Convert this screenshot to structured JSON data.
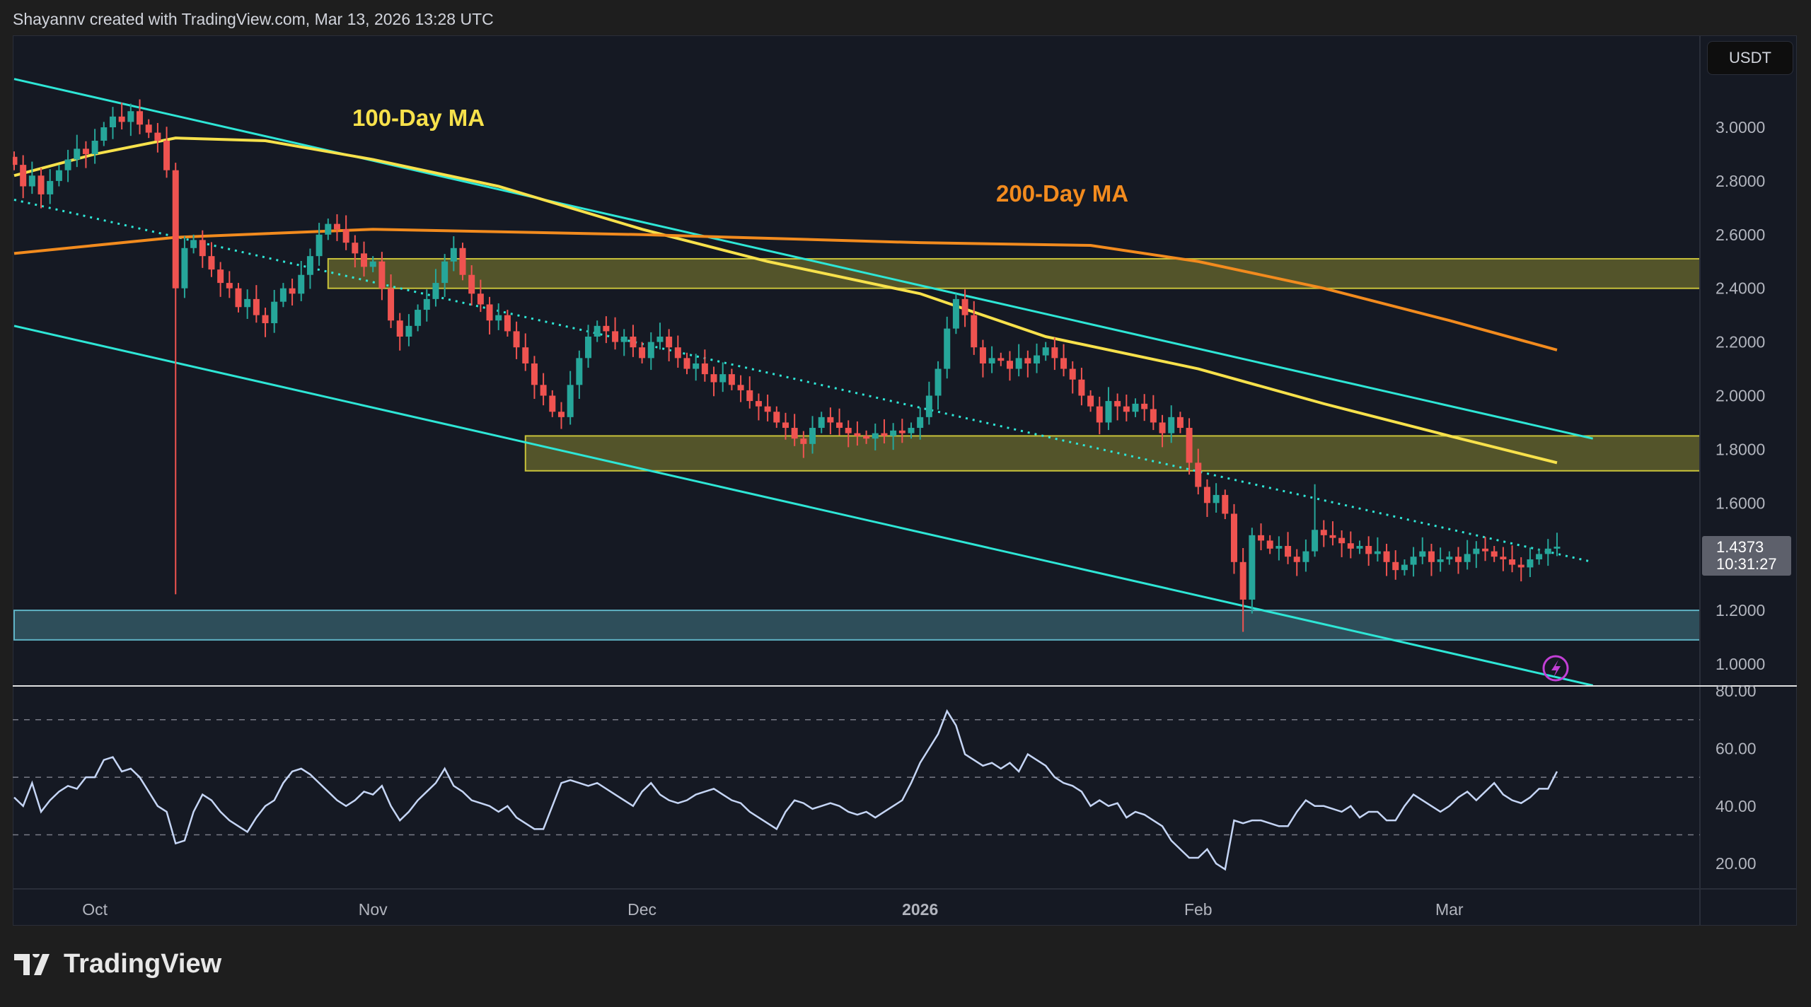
{
  "header": {
    "caption": "Shayannv created with TradingView.com, Mar 13, 2026 13:28 UTC"
  },
  "footer": {
    "logo_text": "TradingView"
  },
  "chart_data": {
    "type": "candlestick",
    "currency": "USDT",
    "start_date": "2025-09-22",
    "closes": [
      2.86,
      2.78,
      2.82,
      2.75,
      2.8,
      2.84,
      2.88,
      2.92,
      2.9,
      2.95,
      3.0,
      3.04,
      3.02,
      3.06,
      3.01,
      2.98,
      2.95,
      2.84,
      2.4,
      2.55,
      2.58,
      2.52,
      2.47,
      2.42,
      2.4,
      2.33,
      2.36,
      2.3,
      2.27,
      2.35,
      2.4,
      2.38,
      2.45,
      2.52,
      2.6,
      2.64,
      2.62,
      2.57,
      2.53,
      2.48,
      2.5,
      2.4,
      2.28,
      2.22,
      2.26,
      2.32,
      2.36,
      2.42,
      2.5,
      2.55,
      2.45,
      2.38,
      2.34,
      2.28,
      2.3,
      2.24,
      2.18,
      2.12,
      2.04,
      2.0,
      1.94,
      1.92,
      2.04,
      2.14,
      2.22,
      2.26,
      2.24,
      2.2,
      2.22,
      2.18,
      2.14,
      2.2,
      2.22,
      2.18,
      2.14,
      2.1,
      2.12,
      2.08,
      2.05,
      2.08,
      2.04,
      2.02,
      1.98,
      1.96,
      1.94,
      1.9,
      1.88,
      1.84,
      1.82,
      1.88,
      1.92,
      1.9,
      1.88,
      1.86,
      1.85,
      1.84,
      1.86,
      1.85,
      1.87,
      1.86,
      1.88,
      1.92,
      2.0,
      2.1,
      2.25,
      2.36,
      2.3,
      2.18,
      2.12,
      2.14,
      2.13,
      2.1,
      2.14,
      2.12,
      2.15,
      2.18,
      2.14,
      2.1,
      2.06,
      2.0,
      1.96,
      1.9,
      1.98,
      1.96,
      1.94,
      1.97,
      1.95,
      1.9,
      1.86,
      1.92,
      1.88,
      1.75,
      1.66,
      1.6,
      1.63,
      1.56,
      1.38,
      1.24,
      1.48,
      1.46,
      1.43,
      1.44,
      1.4,
      1.38,
      1.42,
      1.5,
      1.48,
      1.47,
      1.45,
      1.43,
      1.44,
      1.41,
      1.42,
      1.38,
      1.35,
      1.37,
      1.4,
      1.42,
      1.38,
      1.39,
      1.4,
      1.38,
      1.41,
      1.43,
      1.42,
      1.4,
      1.39,
      1.37,
      1.36,
      1.39,
      1.41,
      1.43,
      1.4373
    ],
    "notable_wicks": [
      {
        "date": "2025-10-10",
        "low": 1.26
      },
      {
        "date": "2026-02-06",
        "low": 1.12
      },
      {
        "date": "2026-02-14",
        "high": 1.67
      }
    ],
    "moving_averages": [
      {
        "name": "100-Day MA",
        "color": "#f7e14b",
        "points": [
          [
            "2025-09-22",
            2.82
          ],
          [
            "2025-10-01",
            2.9
          ],
          [
            "2025-10-10",
            2.96
          ],
          [
            "2025-10-20",
            2.95
          ],
          [
            "2025-11-01",
            2.88
          ],
          [
            "2025-11-15",
            2.78
          ],
          [
            "2025-12-01",
            2.62
          ],
          [
            "2025-12-15",
            2.5
          ],
          [
            "2026-01-01",
            2.38
          ],
          [
            "2026-01-15",
            2.22
          ],
          [
            "2026-02-01",
            2.1
          ],
          [
            "2026-02-15",
            1.97
          ],
          [
            "2026-03-01",
            1.85
          ],
          [
            "2026-03-13",
            1.75
          ]
        ]
      },
      {
        "name": "200-Day MA",
        "color": "#f28b1e",
        "points": [
          [
            "2025-09-22",
            2.53
          ],
          [
            "2025-10-10",
            2.59
          ],
          [
            "2025-11-01",
            2.62
          ],
          [
            "2025-12-01",
            2.6
          ],
          [
            "2026-01-01",
            2.57
          ],
          [
            "2026-01-20",
            2.56
          ],
          [
            "2026-02-01",
            2.5
          ],
          [
            "2026-02-15",
            2.4
          ],
          [
            "2026-03-01",
            2.28
          ],
          [
            "2026-03-13",
            2.17
          ]
        ]
      }
    ],
    "channel": {
      "color": "#2ee6d6",
      "upper": [
        [
          "2025-09-22",
          3.18
        ],
        [
          "2026-03-17",
          1.84
        ]
      ],
      "lower": [
        [
          "2025-09-22",
          2.26
        ],
        [
          "2026-03-17",
          0.92
        ]
      ],
      "middle_dotted": [
        [
          "2025-09-22",
          2.73
        ],
        [
          "2026-03-17",
          1.38
        ]
      ]
    },
    "zones": [
      {
        "from": "2025-10-27",
        "low": 2.4,
        "high": 2.51,
        "color": "#c8c23a"
      },
      {
        "from": "2025-11-18",
        "low": 1.72,
        "high": 1.85,
        "color": "#c8c23a"
      },
      {
        "from": "2025-09-22",
        "low": 1.09,
        "high": 1.2,
        "color": "#5fb3c4"
      }
    ],
    "annotations": [
      {
        "text": "100-Day MA",
        "color": "#f7e14b"
      },
      {
        "text": "200-Day MA",
        "color": "#f28b1e"
      }
    ],
    "y_ticks": [
      "3.0000",
      "2.8000",
      "2.6000",
      "2.4000",
      "2.2000",
      "2.0000",
      "1.8000",
      "1.6000",
      "1.2000",
      "1.0000"
    ],
    "ylim": [
      0.9,
      3.18
    ],
    "last_price": "1.4373",
    "countdown": "10:31:27",
    "x_ticks": [
      {
        "label": "Oct",
        "date": "2025-10-01"
      },
      {
        "label": "Nov",
        "date": "2025-11-01"
      },
      {
        "label": "Dec",
        "date": "2025-12-01"
      },
      {
        "label": "2026",
        "date": "2026-01-01",
        "bold": true
      },
      {
        "label": "Feb",
        "date": "2026-02-01"
      },
      {
        "label": "Mar",
        "date": "2026-03-01"
      }
    ],
    "rsi": {
      "y_ticks": [
        "80.00",
        "60.00",
        "40.00",
        "20.00"
      ],
      "levels": [
        70,
        50,
        30
      ],
      "color": "#c5d5f5",
      "values": [
        43,
        40,
        48,
        38,
        42,
        45,
        47,
        46,
        50,
        50,
        56,
        57,
        52,
        53,
        50,
        45,
        40,
        38,
        27,
        28,
        38,
        44,
        42,
        38,
        35,
        33,
        31,
        36,
        40,
        42,
        48,
        52,
        53,
        51,
        48,
        45,
        42,
        40,
        42,
        45,
        44,
        47,
        40,
        35,
        38,
        42,
        45,
        48,
        53,
        47,
        45,
        42,
        41,
        40,
        38,
        40,
        36,
        34,
        32,
        32,
        40,
        48,
        49,
        48,
        47,
        48,
        46,
        44,
        42,
        40,
        45,
        48,
        44,
        42,
        41,
        42,
        44,
        45,
        46,
        44,
        42,
        41,
        38,
        36,
        34,
        32,
        38,
        42,
        41,
        39,
        40,
        41,
        40,
        38,
        37,
        38,
        36,
        38,
        40,
        42,
        48,
        55,
        60,
        65,
        73,
        68,
        58,
        56,
        54,
        55,
        53,
        55,
        52,
        58,
        56,
        54,
        50,
        48,
        47,
        45,
        40,
        42,
        40,
        41,
        36,
        38,
        37,
        35,
        33,
        28,
        25,
        22,
        22,
        25,
        20,
        18,
        35,
        34,
        35,
        35,
        34,
        33,
        33,
        38,
        42,
        40,
        40,
        39,
        38,
        40,
        36,
        38,
        38,
        35,
        35,
        40,
        44,
        42,
        40,
        38,
        40,
        43,
        45,
        42,
        45,
        48,
        44,
        42,
        41,
        43,
        46,
        46,
        52
      ]
    },
    "colors": {
      "up": "#26a69a",
      "down": "#ef5350",
      "background": "#151923"
    }
  }
}
